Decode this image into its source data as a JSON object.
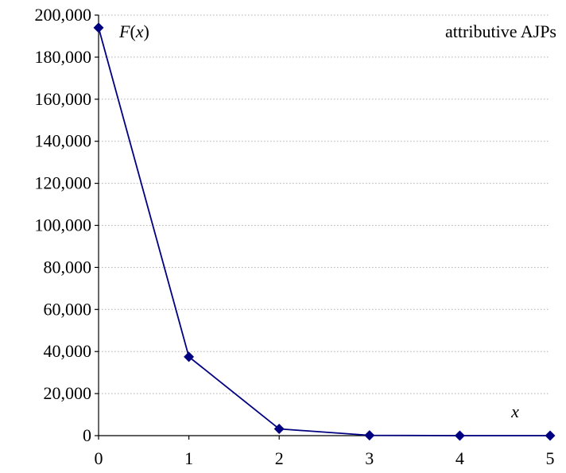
{
  "chart_data": {
    "type": "line",
    "title": "",
    "annotation": "attributive AJPs",
    "xlabel": "x",
    "ylabel": "F(x)",
    "x": [
      0,
      1,
      2,
      3,
      4,
      5
    ],
    "series": [
      {
        "values": [
          194000,
          37500,
          3200,
          150,
          10,
          0
        ],
        "color": "#000080",
        "marker": "diamond"
      }
    ],
    "xlim": [
      0,
      5
    ],
    "ylim": [
      0,
      200000
    ],
    "x_ticks": [
      0,
      1,
      2,
      3,
      4,
      5
    ],
    "x_tick_labels": [
      "0",
      "1",
      "2",
      "3",
      "4",
      "5"
    ],
    "y_ticks": [
      0,
      20000,
      40000,
      60000,
      80000,
      100000,
      120000,
      140000,
      160000,
      180000,
      200000
    ],
    "y_tick_labels": [
      "0",
      "20,000",
      "40,000",
      "60,000",
      "80,000",
      "100,000",
      "120,000",
      "140,000",
      "160,000",
      "180,000",
      "200,000"
    ],
    "grid": "horizontal dotted",
    "legend": "none"
  }
}
